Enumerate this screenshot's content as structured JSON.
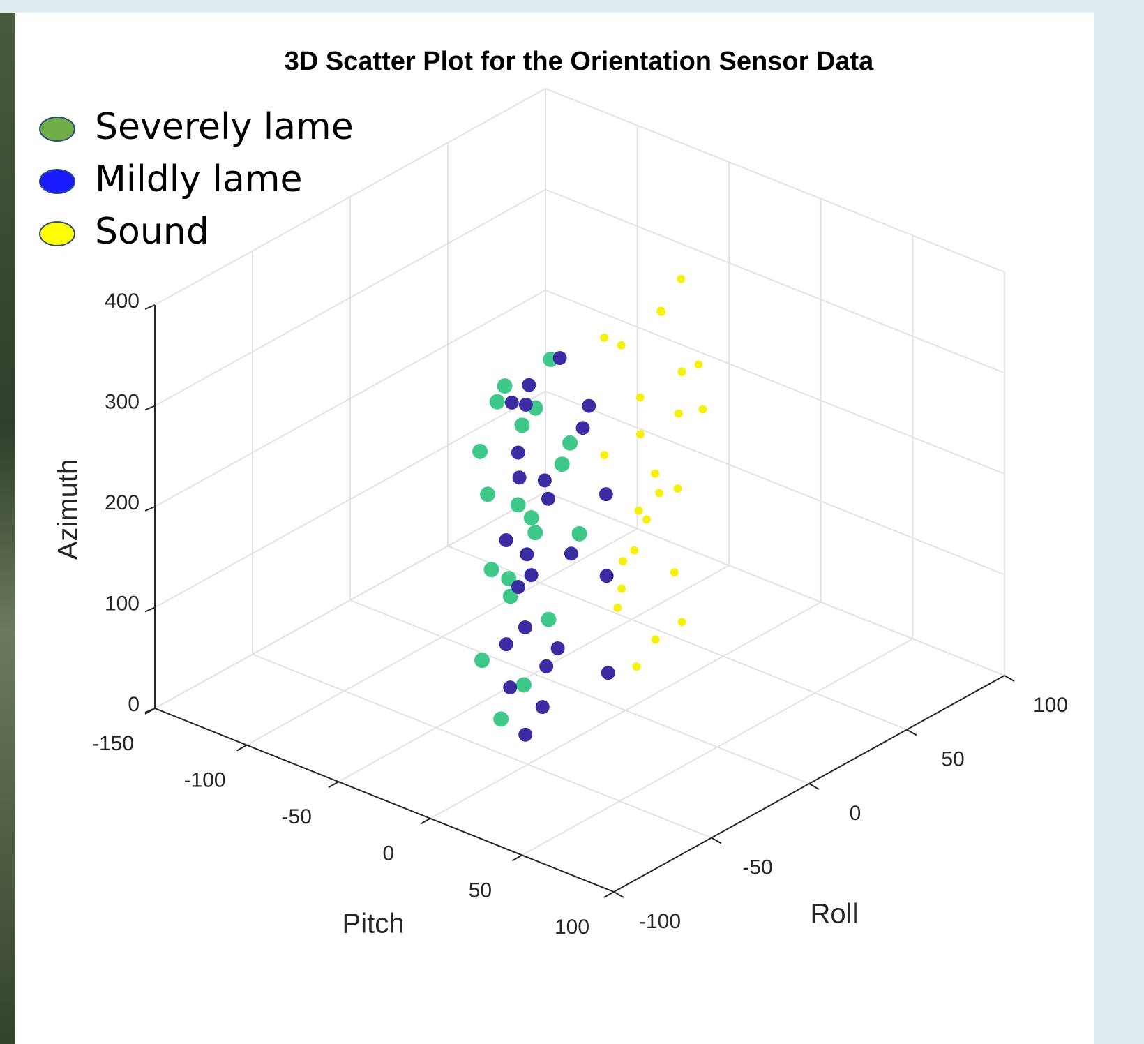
{
  "chart_data": {
    "type": "scatter3d",
    "title": "3D Scatter Plot for the  Orientation Sensor Data",
    "x_label": "Pitch",
    "y_label": "Roll",
    "z_label": "Azimuth",
    "xlim": [
      -150,
      100
    ],
    "xticks": [
      -150,
      -100,
      -50,
      0,
      50,
      100
    ],
    "ylim": [
      -100,
      100
    ],
    "yticks": [
      -100,
      -50,
      0,
      50,
      100
    ],
    "zlim": [
      0,
      400
    ],
    "zticks": [
      0,
      100,
      200,
      300,
      400
    ],
    "grid": true,
    "legend_position": "upper left",
    "series": [
      {
        "name": "Severely lame",
        "color": "#3ec98a",
        "legend_color": "#70ad47",
        "x": [
          -20,
          -15,
          -25,
          -10,
          -18,
          -22,
          -12,
          -16,
          -8,
          -24,
          -14,
          -19,
          -11,
          -21,
          -17,
          -9,
          -23,
          -13,
          -6,
          -20
        ],
        "y": [
          -45,
          -38,
          -50,
          -30,
          -42,
          -48,
          -35,
          -40,
          -25,
          -52,
          -33,
          -44,
          -28,
          -46,
          -37,
          -20,
          -49,
          -36,
          -18,
          -41
        ],
        "z": [
          25,
          55,
          85,
          115,
          145,
          175,
          205,
          235,
          265,
          295,
          325,
          355,
          370,
          340,
          310,
          280,
          250,
          220,
          190,
          160
        ]
      },
      {
        "name": "Mildly lame",
        "color": "#3b2ca3",
        "legend_color": "#1a1aff",
        "x": [
          -12,
          -8,
          -15,
          -5,
          -10,
          -18,
          -3,
          -14,
          -7,
          -11,
          -2,
          -16,
          -9,
          -6,
          -13,
          -4,
          -17,
          -10,
          0,
          -8,
          -12,
          -5,
          -15,
          -7,
          -1
        ],
        "y": [
          -40,
          -35,
          -45,
          -30,
          -42,
          -38,
          -25,
          -48,
          -33,
          -44,
          -20,
          -36,
          -41,
          -28,
          -46,
          -15,
          -39,
          -32,
          -10,
          -43,
          -37,
          -5,
          -47,
          -34,
          -8
        ],
        "z": [
          10,
          35,
          60,
          90,
          120,
          150,
          180,
          210,
          240,
          270,
          300,
          330,
          360,
          375,
          345,
          315,
          285,
          255,
          225,
          195,
          165,
          135,
          105,
          75,
          45
        ]
      },
      {
        "name": "Sound",
        "color": "#f5f10a",
        "legend_color": "#ffff00",
        "x": [
          -10,
          -5,
          -15,
          0,
          -8,
          -12,
          5,
          -20,
          -3,
          -7,
          10,
          -18,
          -1,
          -6,
          -14,
          3,
          -9,
          -4,
          -11,
          2,
          -16,
          8,
          -2,
          -13,
          -7
        ],
        "y": [
          15,
          20,
          10,
          25,
          12,
          18,
          22,
          8,
          30,
          14,
          28,
          6,
          19,
          24,
          11,
          26,
          16,
          21,
          9,
          27,
          13,
          32,
          17,
          23,
          35
        ],
        "z": [
          20,
          45,
          80,
          110,
          140,
          170,
          200,
          230,
          260,
          290,
          320,
          350,
          375,
          365,
          340,
          310,
          250,
          190,
          130,
          60,
          95,
          270,
          215,
          155,
          385
        ]
      }
    ]
  }
}
